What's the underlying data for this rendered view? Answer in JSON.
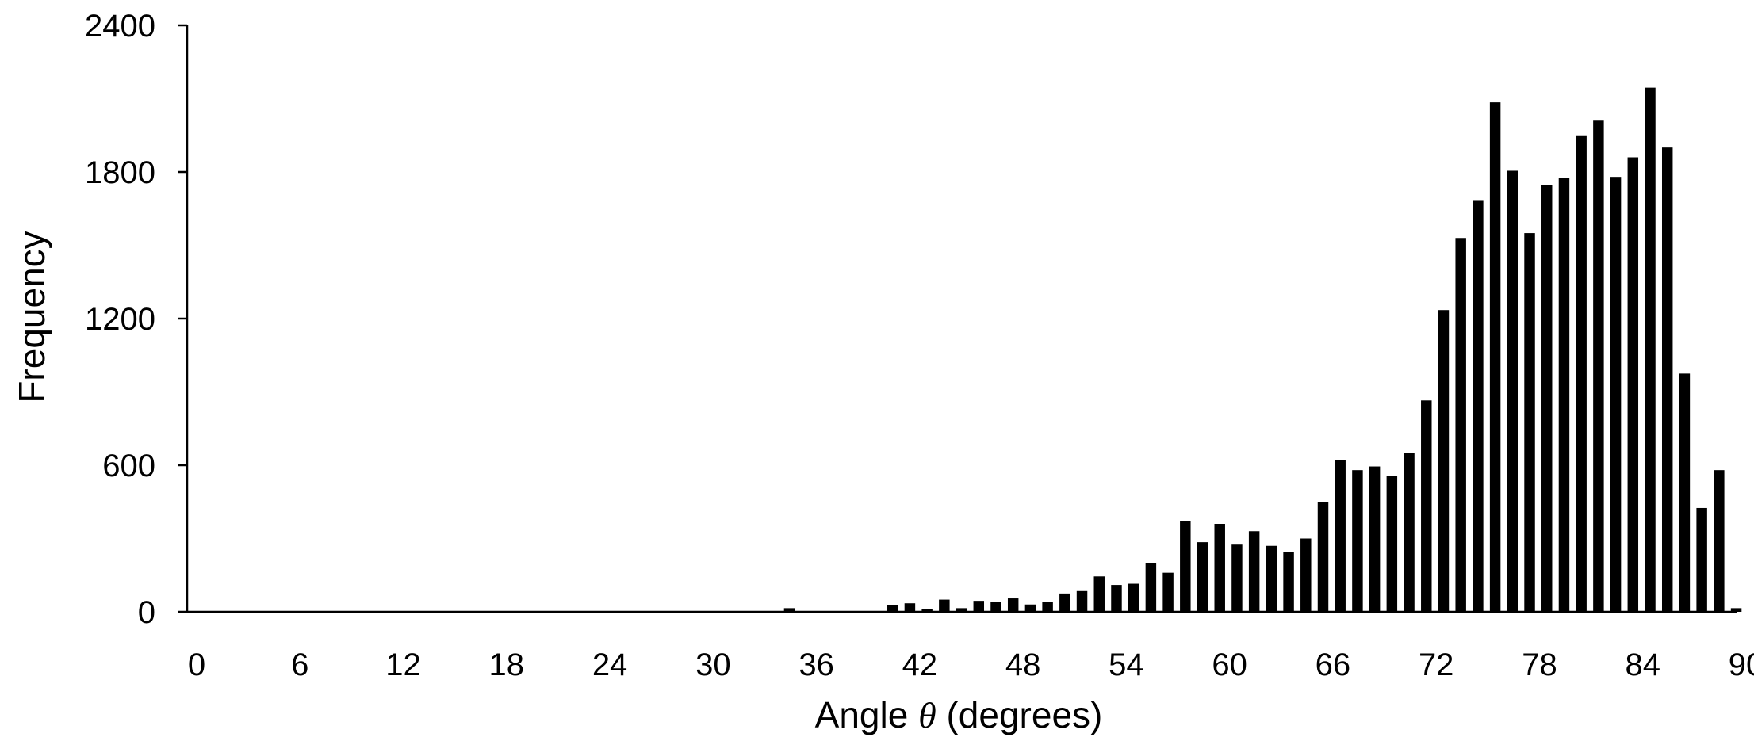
{
  "chart_data": {
    "type": "bar",
    "xlabel": "Angle",
    "xlabel_symbol": "θ",
    "xlabel_unit": "(degrees)",
    "ylabel": "Frequency",
    "xlim": [
      0,
      90
    ],
    "ylim": [
      0,
      2400
    ],
    "x_ticks": [
      0,
      6,
      12,
      18,
      24,
      30,
      36,
      42,
      48,
      54,
      60,
      66,
      72,
      78,
      84,
      90
    ],
    "y_ticks": [
      0,
      600,
      1200,
      1800,
      2400
    ],
    "bar_color": "#000000",
    "grid": false,
    "legend": "none",
    "x": [
      0,
      1,
      2,
      3,
      4,
      5,
      6,
      7,
      8,
      9,
      10,
      11,
      12,
      13,
      14,
      15,
      16,
      17,
      18,
      19,
      20,
      21,
      22,
      23,
      24,
      25,
      26,
      27,
      28,
      29,
      30,
      31,
      32,
      33,
      34,
      35,
      36,
      37,
      38,
      39,
      40,
      41,
      42,
      43,
      44,
      45,
      46,
      47,
      48,
      49,
      50,
      51,
      52,
      53,
      54,
      55,
      56,
      57,
      58,
      59,
      60,
      61,
      62,
      63,
      64,
      65,
      66,
      67,
      68,
      69,
      70,
      71,
      72,
      73,
      74,
      75,
      76,
      77,
      78,
      79,
      80,
      81,
      82,
      83,
      84,
      85,
      86,
      87,
      88,
      89,
      90
    ],
    "values": [
      0,
      0,
      0,
      0,
      0,
      0,
      0,
      0,
      0,
      0,
      0,
      0,
      0,
      0,
      0,
      0,
      0,
      0,
      0,
      0,
      0,
      0,
      0,
      0,
      0,
      0,
      0,
      0,
      0,
      0,
      0,
      0,
      0,
      0,
      0,
      15,
      0,
      0,
      0,
      0,
      0,
      28,
      35,
      10,
      50,
      15,
      45,
      40,
      55,
      30,
      40,
      75,
      85,
      145,
      110,
      115,
      200,
      160,
      370,
      285,
      360,
      275,
      330,
      270,
      245,
      300,
      450,
      620,
      580,
      595,
      555,
      650,
      865,
      1235,
      1530,
      1685,
      2085,
      1805,
      1550,
      1745,
      1775,
      1950,
      2010,
      1780,
      1860,
      2145,
      1900,
      975,
      425,
      580,
      15
    ]
  }
}
